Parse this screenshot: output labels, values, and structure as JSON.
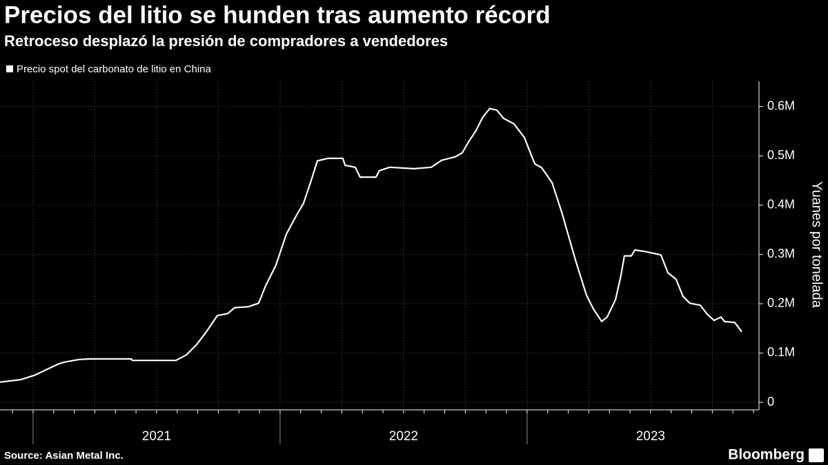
{
  "chart_data": {
    "type": "line",
    "title": "Precios del litio se hunden tras aumento récord",
    "subtitle": "Retroceso desplazó la presión de compradores a vendedores",
    "y_label": "Yuanes por tonelada",
    "source": "Source: Asian Metal Inc.",
    "brand": "Bloomberg",
    "x": [
      2020.866,
      2020.95,
      2021.006,
      2021.061,
      2021.103,
      2021.131,
      2021.187,
      2021.229,
      2021.397,
      2021.402,
      2021.578,
      2021.62,
      2021.662,
      2021.704,
      2021.746,
      2021.788,
      2021.816,
      2021.872,
      2021.913,
      2021.941,
      2021.983,
      2022.025,
      2022.067,
      2022.095,
      2022.123,
      2022.151,
      2022.193,
      2022.254,
      2022.263,
      2022.304,
      2022.324,
      2022.388,
      2022.402,
      2022.444,
      2022.542,
      2022.612,
      2022.654,
      2022.709,
      2022.737,
      2022.765,
      2022.793,
      2022.821,
      2022.849,
      2022.877,
      2022.905,
      2022.947,
      2022.989,
      2023.031,
      2023.059,
      2023.101,
      2023.142,
      2023.17,
      2023.198,
      2023.24,
      2023.268,
      2023.302,
      2023.324,
      2023.358,
      2023.38,
      2023.394,
      2023.422,
      2023.436,
      2023.478,
      2023.542,
      2023.57,
      2023.603,
      2023.631,
      2023.659,
      2023.701,
      2023.729,
      2023.757,
      2023.785,
      2023.799,
      2023.841,
      2023.869
    ],
    "series": [
      {
        "name": "Precio spot del carbonato de litio en China",
        "color": "#ffffff",
        "values": [
          41000,
          46000,
          55000,
          68000,
          78000,
          82000,
          87000,
          88000,
          88000,
          85000,
          85000,
          96000,
          117000,
          145000,
          176000,
          180000,
          192000,
          194000,
          201000,
          236000,
          278000,
          341000,
          380000,
          404000,
          446000,
          490000,
          495000,
          495000,
          481000,
          477000,
          457000,
          457000,
          470000,
          477000,
          474000,
          477000,
          491000,
          498000,
          506000,
          530000,
          551000,
          579000,
          596000,
          593000,
          576000,
          565000,
          537000,
          484000,
          476000,
          446000,
          383000,
          334000,
          285000,
          218000,
          190000,
          164000,
          173000,
          208000,
          257000,
          297000,
          297000,
          309000,
          306000,
          299000,
          263000,
          250000,
          215000,
          201000,
          197000,
          179000,
          166000,
          173000,
          164000,
          162000,
          143000
        ]
      }
    ],
    "xlim": [
      2020.866,
      2023.911
    ],
    "xticks": [
      {
        "value": 2021,
        "label": "2021"
      },
      {
        "value": 2022,
        "label": "2022"
      },
      {
        "value": 2023,
        "label": "2023"
      }
    ],
    "ylim": [
      0,
      650000
    ],
    "yticks": [
      0,
      {
        "value": 100000,
        "label": "0.1M"
      },
      {
        "value": 200000,
        "label": "0.2M"
      },
      {
        "value": 300000,
        "label": "0.3M"
      },
      {
        "value": 400000,
        "label": "0.4M"
      },
      {
        "value": 500000,
        "label": "0.5M"
      },
      {
        "value": 600000,
        "label": "0.6M"
      }
    ],
    "grid": true
  }
}
